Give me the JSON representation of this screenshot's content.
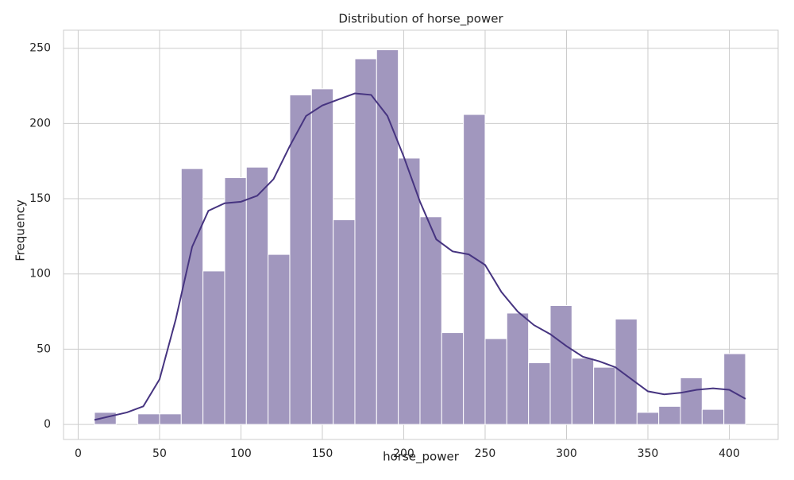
{
  "chart_data": {
    "type": "histogram",
    "title": "Distribution of horse_power",
    "x_label": "horse_power",
    "y_label": "Frequency",
    "bins": [
      10,
      23.33,
      36.67,
      50,
      63.33,
      76.67,
      90,
      103.33,
      116.67,
      130,
      143.33,
      156.67,
      170,
      183.33,
      196.67,
      210,
      223.33,
      236.67,
      250,
      263.33,
      276.67,
      290,
      303.33,
      316.67,
      330,
      343.33,
      356.67,
      370,
      383.33,
      396.67,
      410
    ],
    "values": [
      8,
      0,
      7,
      7,
      170,
      102,
      164,
      171,
      113,
      219,
      223,
      136,
      243,
      249,
      177,
      138,
      61,
      206,
      57,
      74,
      41,
      79,
      44,
      38,
      70,
      8,
      12,
      31,
      10,
      47
    ],
    "color": "#a197be",
    "kde": {
      "color": "#463480",
      "x": [
        10,
        30,
        40,
        50,
        60,
        70,
        80,
        90,
        100,
        110,
        120,
        130,
        140,
        150,
        160,
        170,
        180,
        190,
        200,
        210,
        220,
        230,
        240,
        250,
        260,
        270,
        280,
        290,
        300,
        310,
        320,
        330,
        340,
        350,
        360,
        370,
        380,
        390,
        400,
        410
      ],
      "values": [
        3,
        8,
        12,
        30,
        70,
        118,
        142,
        147,
        148,
        152,
        163,
        185,
        205,
        212,
        216,
        220,
        219,
        205,
        178,
        148,
        123,
        115,
        113,
        106,
        88,
        75,
        66,
        60,
        52,
        45,
        42,
        38,
        30,
        22,
        20,
        21,
        23,
        24,
        23,
        17
      ]
    },
    "xlim": [
      -9,
      430
    ],
    "ylim": [
      -10,
      262
    ],
    "xticks": [
      0,
      50,
      100,
      150,
      200,
      250,
      300,
      350,
      400
    ],
    "yticks": [
      0,
      50,
      100,
      150,
      200,
      250
    ],
    "grid": true
  }
}
